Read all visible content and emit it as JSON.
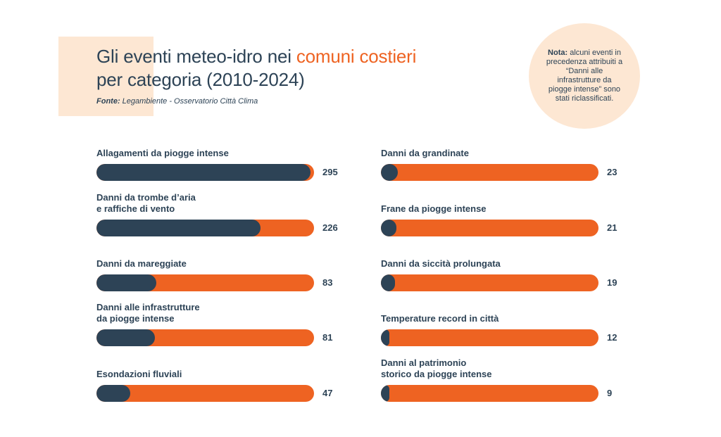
{
  "header": {
    "title_before": "Gli eventi meteo-idro nei ",
    "title_highlight": "comuni costieri",
    "title_after": "per categoria (2010-2024)",
    "source_label": "Fonte:",
    "source_text": " Legambiente - Osservatorio Città Clima"
  },
  "note": {
    "label": "Nota:",
    "text": " alcuni eventi in precedenza attribuiti a “Danni alle infrastrutture da piogge intense” sono stati riclassificati."
  },
  "colors": {
    "dark": "#2d4356",
    "accent": "#ee6322",
    "peach": "#fde7d3"
  },
  "chart_data": {
    "type": "bar",
    "orientation": "horizontal",
    "xlim": [
      0,
      300
    ],
    "categories": [
      "Allagamenti da piogge intense",
      "Danni da trombe d’aria\ne raffiche di vento",
      "Danni da mareggiate",
      "Danni alle infrastrutture\nda piogge intense",
      "Esondazioni fluviali",
      "Danni da grandinate",
      "Frane da piogge intense",
      "Danni da siccità prolungata",
      "Temperature record in città",
      "Danni al patrimonio\nstorico da piogge intense"
    ],
    "values": [
      295,
      226,
      83,
      81,
      47,
      23,
      21,
      19,
      12,
      9
    ]
  }
}
